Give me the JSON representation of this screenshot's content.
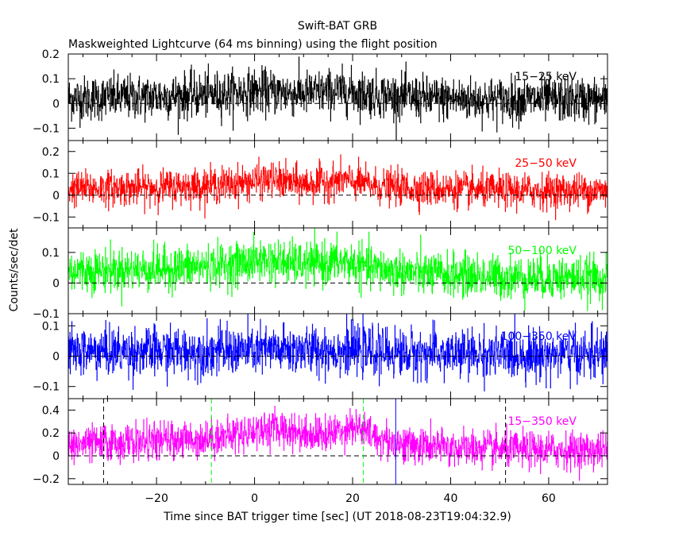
{
  "title": "Swift-BAT GRB",
  "subtitle": "Maskweighted Lightcurve (64 ms binning) using the flight position",
  "chart_data": {
    "type": "line",
    "title": "Swift-BAT GRB",
    "subtitle": "Maskweighted Lightcurve (64 ms binning) using the flight position",
    "xlabel": "Time since BAT trigger time [sec] (UT 2018-08-23T19:04:32.9)",
    "ylabel": "Counts/sec/det",
    "xlim": [
      -38,
      72
    ],
    "x_ticks": [
      -20,
      0,
      20,
      40,
      60
    ],
    "x_tick_labels": [
      "−20",
      "0",
      "20",
      "40",
      "60"
    ],
    "bin_width_sec": 0.064,
    "panels": [
      {
        "name": "15−25 keV",
        "color": "#000000",
        "ylim": [
          -0.15,
          0.2
        ],
        "y_ticks": [
          -0.1,
          0,
          0.1,
          0.2
        ],
        "y_tick_labels": [
          "−0.1",
          "0",
          "0.1",
          "0.2"
        ],
        "baseline": 0.02,
        "noise_sigma": 0.045,
        "profile_x": [
          -38,
          -25,
          -10,
          0,
          10,
          18,
          25,
          35,
          50,
          72
        ],
        "profile_y": [
          0.02,
          0.025,
          0.035,
          0.05,
          0.04,
          0.05,
          0.035,
          0.02,
          0.015,
          0.015
        ]
      },
      {
        "name": "25−50 keV",
        "color": "#ff0000",
        "ylim": [
          -0.15,
          0.25
        ],
        "y_ticks": [
          -0.1,
          0,
          0.1,
          0.2
        ],
        "y_tick_labels": [
          "−0.1",
          "0",
          "0.1",
          "0.2"
        ],
        "baseline": 0.02,
        "noise_sigma": 0.04,
        "profile_x": [
          -38,
          -20,
          -5,
          3,
          10,
          18,
          25,
          35,
          50,
          72
        ],
        "profile_y": [
          0.03,
          0.035,
          0.05,
          0.07,
          0.05,
          0.07,
          0.04,
          0.03,
          0.02,
          0.02
        ]
      },
      {
        "name": "50−100 keV",
        "color": "#00ff00",
        "ylim": [
          -0.1,
          0.18
        ],
        "y_ticks": [
          -0.1,
          0,
          0.1
        ],
        "y_tick_labels": [
          "−0.1",
          "0",
          "0.1"
        ],
        "baseline": 0.03,
        "noise_sigma": 0.035,
        "profile_x": [
          -38,
          -20,
          -5,
          2,
          10,
          18,
          25,
          35,
          50,
          72
        ],
        "profile_y": [
          0.04,
          0.045,
          0.06,
          0.075,
          0.06,
          0.07,
          0.045,
          0.03,
          0.02,
          0.015
        ]
      },
      {
        "name": "100−350 keV",
        "color": "#0000ff",
        "ylim": [
          -0.14,
          0.14
        ],
        "y_ticks": [
          -0.1,
          0,
          0.1
        ],
        "y_tick_labels": [
          "−0.1",
          "0",
          "0.1"
        ],
        "baseline": 0.01,
        "noise_sigma": 0.04,
        "profile_x": [
          -38,
          -10,
          5,
          18,
          30,
          50,
          72
        ],
        "profile_y": [
          0.015,
          0.015,
          0.02,
          0.02,
          0.01,
          0.005,
          0.005
        ]
      },
      {
        "name": "15−350 keV",
        "color": "#ff00ff",
        "ylim": [
          -0.25,
          0.5
        ],
        "y_ticks": [
          -0.2,
          0,
          0.2,
          0.4
        ],
        "y_tick_labels": [
          "−0.2",
          "0",
          "0.2",
          "0.4"
        ],
        "baseline": 0.1,
        "noise_sigma": 0.08,
        "profile_x": [
          -38,
          -25,
          -10,
          -5,
          0,
          5,
          10,
          15,
          20,
          25,
          30,
          40,
          55,
          72
        ],
        "profile_y": [
          0.1,
          0.12,
          0.15,
          0.18,
          0.22,
          0.24,
          0.2,
          0.18,
          0.27,
          0.16,
          0.1,
          0.07,
          0.05,
          0.05
        ],
        "vertical_lines": [
          {
            "x": -30.8,
            "color": "#000000",
            "dash": true
          },
          {
            "x": -8.8,
            "color": "#00ff00",
            "dash": true
          },
          {
            "x": 22.2,
            "color": "#00ff00",
            "dash": true
          },
          {
            "x": 28.8,
            "color": "#0000ff",
            "dash": false
          },
          {
            "x": 51.2,
            "color": "#000000",
            "dash": true
          }
        ]
      }
    ]
  }
}
